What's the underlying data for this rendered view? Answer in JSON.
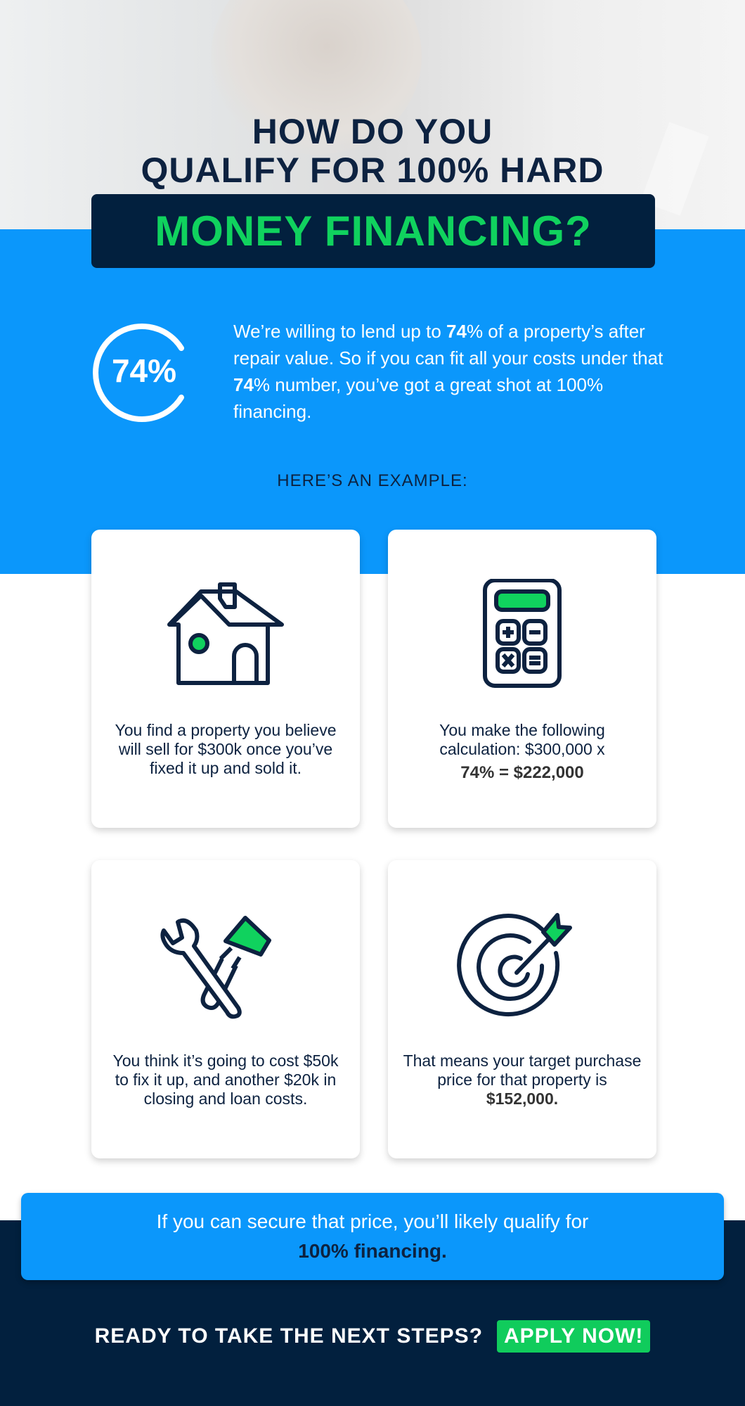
{
  "colors": {
    "brand_blue": "#0b97fb",
    "navy": "#02203e",
    "green": "#10d25e"
  },
  "header": {
    "line1": "HOW DO YOU",
    "line2": "QUALIFY FOR 100% HARD",
    "highlight": "MONEY FINANCING?"
  },
  "intro": {
    "badge": "74%",
    "parts": [
      "We’re willing to lend up to ",
      "74",
      "% of a property’s after repair value. So if you can fit all your costs under that ",
      "74",
      "% number, you’ve got a great shot at 100% financing."
    ]
  },
  "example_label": "HERE’S AN EXAMPLE:",
  "cards": [
    {
      "icon": "house-icon",
      "text": "You find a property you believe will sell for $300k once you’ve fixed it up and sold it."
    },
    {
      "icon": "calculator-icon",
      "text": "You make the following calculation: $300,000 x",
      "bold": "74% = $222,000"
    },
    {
      "icon": "tools-icon",
      "text": "You think it’s going to cost $50k to fix it up, and another $20k in closing and loan costs."
    },
    {
      "icon": "target-icon",
      "text": "That means your target purchase price for that property is ",
      "bold": "$152,000."
    }
  ],
  "banner": {
    "text": "If you can secure that price, you’ll likely qualify for",
    "bold": "100% financing."
  },
  "cta": {
    "text": "READY TO TAKE THE NEXT STEPS?",
    "button": "APPLY NOW!"
  }
}
